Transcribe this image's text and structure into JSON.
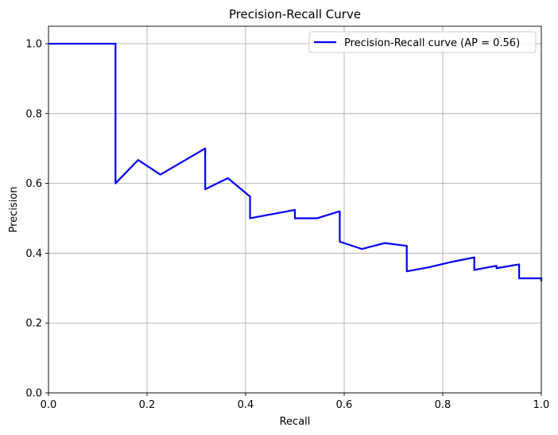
{
  "chart_data": {
    "type": "line",
    "title": "Precision-Recall Curve",
    "xlabel": "Recall",
    "ylabel": "Precision",
    "xlim": [
      0.0,
      1.0
    ],
    "ylim": [
      0.0,
      1.05
    ],
    "xticks": [
      0.0,
      0.2,
      0.4,
      0.6,
      0.8,
      1.0
    ],
    "yticks": [
      0.0,
      0.2,
      0.4,
      0.6,
      0.8,
      1.0
    ],
    "xtick_labels": [
      "0.0",
      "0.2",
      "0.4",
      "0.6",
      "0.8",
      "1.0"
    ],
    "ytick_labels": [
      "0.0",
      "0.2",
      "0.4",
      "0.6",
      "0.8",
      "1.0"
    ],
    "grid": true,
    "legend_position": "top-right",
    "series": [
      {
        "name": "Precision-Recall curve (AP = 0.56)",
        "color": "#0000ff",
        "x": [
          0.0,
          0.136,
          0.136,
          0.182,
          0.227,
          0.318,
          0.318,
          0.364,
          0.409,
          0.409,
          0.5,
          0.5,
          0.545,
          0.591,
          0.591,
          0.636,
          0.682,
          0.727,
          0.727,
          0.773,
          0.818,
          0.864,
          0.864,
          0.909,
          0.909,
          0.955,
          0.955,
          1.0,
          1.0
        ],
        "y": [
          1.0,
          1.0,
          0.6,
          0.667,
          0.625,
          0.7,
          0.583,
          0.615,
          0.562,
          0.5,
          0.524,
          0.5,
          0.5,
          0.52,
          0.433,
          0.412,
          0.429,
          0.421,
          0.348,
          0.36,
          0.375,
          0.388,
          0.352,
          0.364,
          0.357,
          0.368,
          0.328,
          0.328,
          0.32
        ]
      }
    ]
  }
}
